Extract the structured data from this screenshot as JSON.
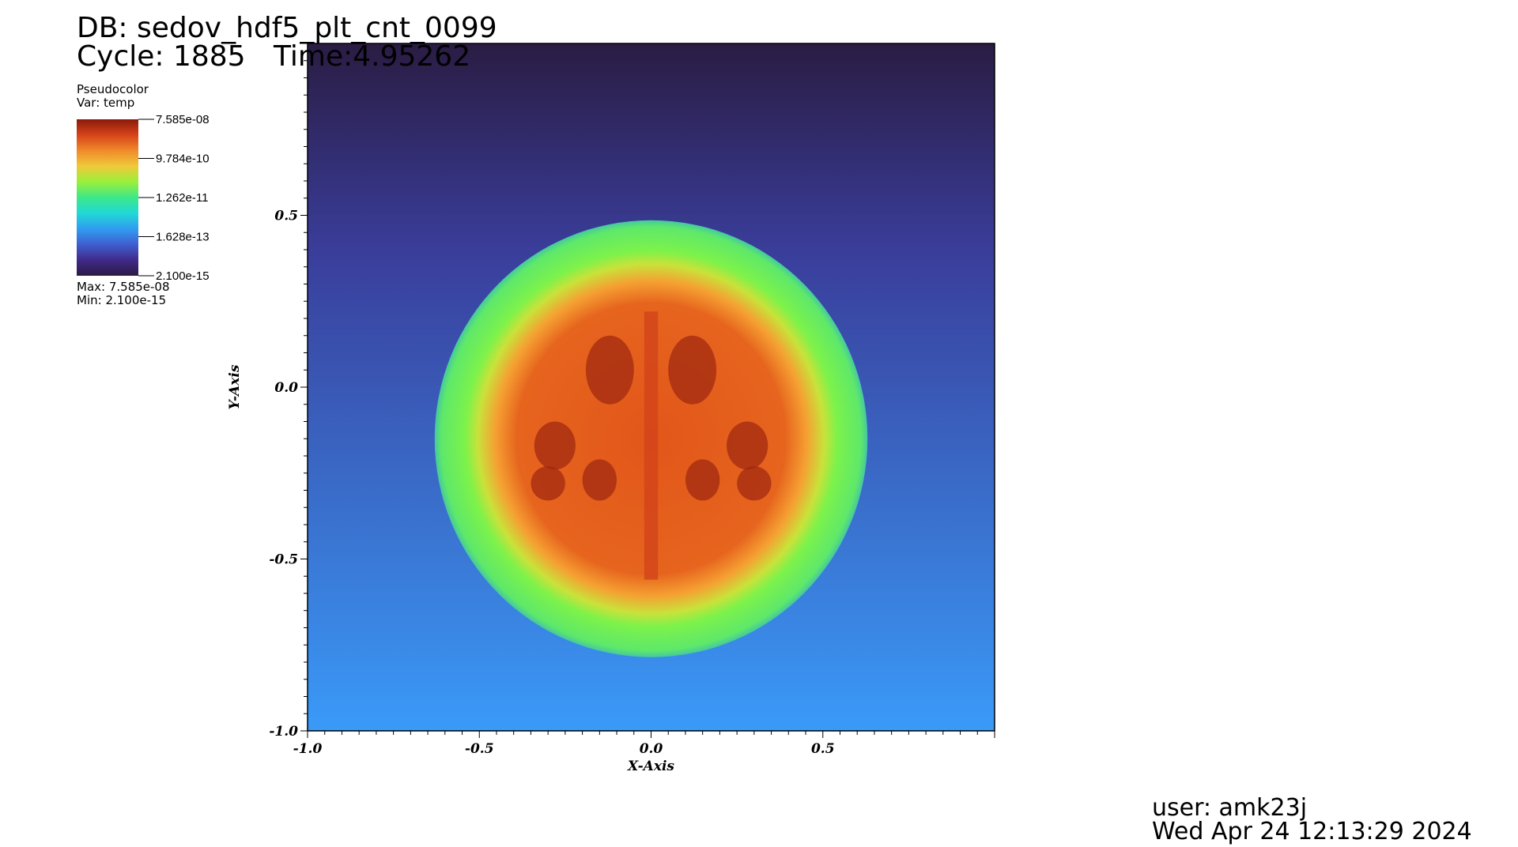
{
  "header": {
    "db": "DB: sedov_hdf5_plt_cnt_0099",
    "cycle": "Cycle: 1885",
    "time": "Time:4.95262"
  },
  "legend": {
    "plot_type": "Pseudocolor",
    "variable": "Var: temp",
    "labels": [
      "7.585e-08",
      "9.784e-10",
      "1.262e-11",
      "1.628e-13",
      "2.100e-15"
    ],
    "max": "Max: 7.585e-08",
    "min": "Min: 2.100e-15",
    "colormap": [
      "#2c1a43",
      "#402a8a",
      "#3f5ed0",
      "#2f9df0",
      "#21d8d6",
      "#3de88a",
      "#9af03a",
      "#f0c93a",
      "#f08a2a",
      "#d6431a",
      "#8a1a0a"
    ]
  },
  "chart_data": {
    "type": "heatmap",
    "title": "",
    "xlabel": "X-Axis",
    "ylabel": "Y-Axis",
    "xlim": [
      -1.0,
      1.0
    ],
    "ylim": [
      -1.0,
      1.0
    ],
    "x_ticks": [
      "-1.0",
      "-0.5",
      "0.0",
      "0.5"
    ],
    "y_ticks": [
      "-1.0",
      "-0.5",
      "0.0",
      "0.5"
    ],
    "field": "temp",
    "scale": "log",
    "blast_center": [
      0.0,
      -0.15
    ],
    "blast_radius": 0.63,
    "background_colors": {
      "top": "#2a1c43",
      "upper": "#3a3d9a",
      "bottom": "#3a9af8"
    },
    "shell_color": "#7df24a",
    "core_color": "#e2561a"
  },
  "footer": {
    "user": "user: amk23j",
    "date": "Wed Apr 24 12:13:29 2024"
  }
}
